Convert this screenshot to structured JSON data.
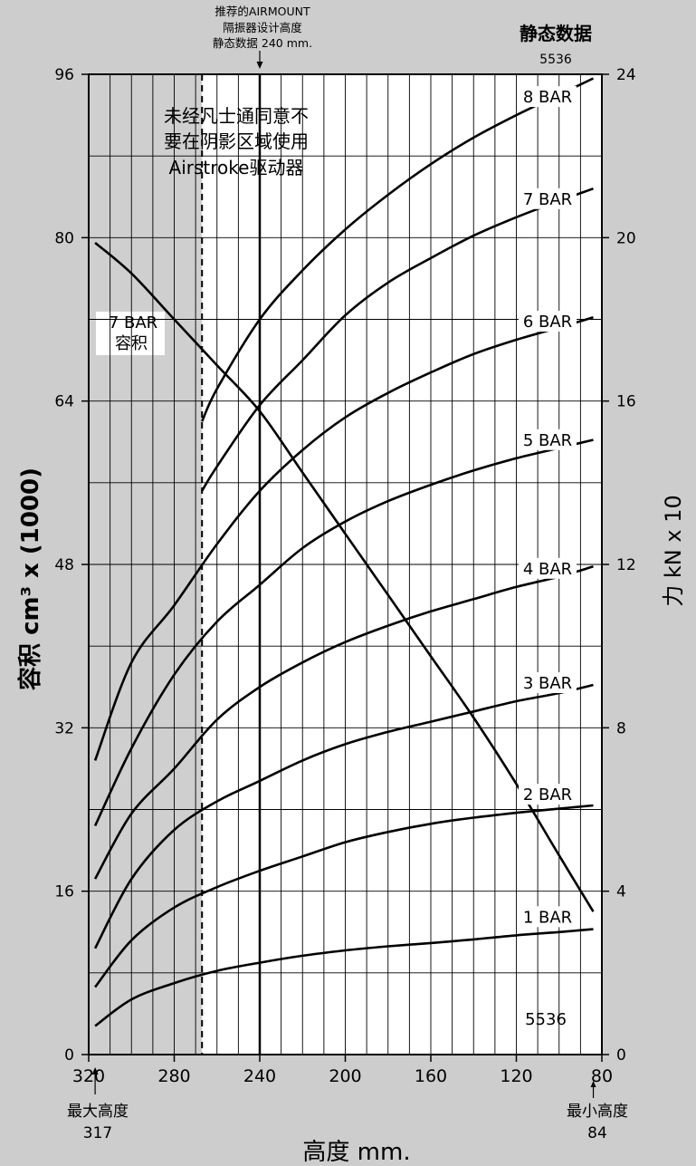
{
  "chart_data": {
    "type": "line",
    "title": "静态数据",
    "title_number": "5536",
    "part_number": "5536",
    "xlabel": "高度 mm.",
    "ylabel_left": "容积 cm³ x (1000)",
    "ylabel_right": "力 kN x 10",
    "xlim": [
      320,
      80
    ],
    "ylim_left": [
      0,
      96
    ],
    "ylim_right": [
      0,
      24
    ],
    "x_ticks": [
      "320",
      "280",
      "240",
      "200",
      "160",
      "120",
      "80"
    ],
    "x_tick_values": [
      320,
      280,
      240,
      200,
      160,
      120,
      80
    ],
    "y_left_ticks": [
      "0",
      "16",
      "32",
      "48",
      "64",
      "80",
      "96"
    ],
    "y_left_tick_values": [
      0,
      16,
      32,
      48,
      64,
      80,
      96
    ],
    "y_right_ticks": [
      "0",
      "4",
      "8",
      "12",
      "16",
      "20",
      "24"
    ],
    "y_right_tick_values": [
      0,
      4,
      8,
      12,
      16,
      20,
      24
    ],
    "grid": true,
    "recommended_height": {
      "x": 240,
      "label_lines": [
        "推荐的AIRMOUNT",
        "隔振器设计高度",
        "静态数据 240 mm."
      ]
    },
    "max_height": {
      "x": 317,
      "label": "最大高度",
      "value": "317"
    },
    "min_height": {
      "x": 84,
      "label": "最小高度",
      "value": "84"
    },
    "shaded_region": {
      "x_from": 320,
      "x_to": 267,
      "note_lines": [
        "未经凡士通同意不",
        "要在阴影区域使用",
        "Airstroke驱动器"
      ]
    },
    "volume_curve": {
      "name_lines": [
        "7 BAR",
        "容积"
      ],
      "axis": "left",
      "x": [
        317,
        300,
        280,
        260,
        240,
        220,
        200,
        180,
        160,
        140,
        120,
        100,
        84
      ],
      "y": [
        79.5,
        76.5,
        72,
        67.5,
        63,
        57,
        51,
        45,
        39,
        33,
        26.5,
        19.5,
        14
      ]
    },
    "series": [
      {
        "name": "1 BAR",
        "axis": "right",
        "x": [
          317,
          300,
          280,
          260,
          240,
          220,
          200,
          180,
          160,
          140,
          120,
          100,
          84
        ],
        "y": [
          0.7,
          1.35,
          1.75,
          2.05,
          2.25,
          2.42,
          2.55,
          2.65,
          2.73,
          2.82,
          2.92,
          3.0,
          3.07
        ]
      },
      {
        "name": "2 BAR",
        "axis": "right",
        "x": [
          317,
          300,
          280,
          260,
          240,
          220,
          200,
          180,
          160,
          140,
          120,
          100,
          84
        ],
        "y": [
          1.65,
          2.8,
          3.6,
          4.1,
          4.5,
          4.85,
          5.2,
          5.45,
          5.65,
          5.8,
          5.92,
          6.02,
          6.1
        ]
      },
      {
        "name": "3 BAR",
        "axis": "right",
        "x": [
          317,
          300,
          280,
          260,
          240,
          220,
          200,
          180,
          160,
          140,
          120,
          100,
          84
        ],
        "y": [
          2.6,
          4.3,
          5.5,
          6.2,
          6.7,
          7.2,
          7.6,
          7.9,
          8.15,
          8.4,
          8.65,
          8.85,
          9.05
        ]
      },
      {
        "name": "4 BAR",
        "axis": "right",
        "x": [
          317,
          300,
          280,
          260,
          240,
          220,
          200,
          180,
          160,
          140,
          120,
          100,
          84
        ],
        "y": [
          4.3,
          5.9,
          7.0,
          8.2,
          9.0,
          9.6,
          10.1,
          10.5,
          10.85,
          11.15,
          11.45,
          11.7,
          11.95
        ]
      },
      {
        "name": "5 BAR",
        "axis": "right",
        "x": [
          317,
          300,
          280,
          260,
          240,
          220,
          200,
          180,
          160,
          140,
          120,
          100,
          84
        ],
        "y": [
          5.6,
          7.5,
          9.3,
          10.6,
          11.5,
          12.4,
          13.05,
          13.55,
          13.95,
          14.3,
          14.6,
          14.85,
          15.05
        ]
      },
      {
        "name": "6 BAR",
        "axis": "right",
        "x": [
          317,
          300,
          280,
          260,
          240,
          220,
          200,
          180,
          160,
          140,
          120,
          100,
          84
        ],
        "y": [
          7.2,
          9.6,
          11.0,
          12.5,
          13.8,
          14.8,
          15.6,
          16.2,
          16.7,
          17.15,
          17.5,
          17.8,
          18.05
        ]
      },
      {
        "name": "7 BAR",
        "axis": "right",
        "x": [
          267,
          260,
          240,
          220,
          200,
          180,
          160,
          140,
          120,
          100,
          84
        ],
        "y": [
          13.8,
          14.4,
          15.9,
          17.0,
          18.1,
          18.9,
          19.5,
          20.05,
          20.5,
          20.9,
          21.2
        ]
      },
      {
        "name": "8 BAR",
        "axis": "right",
        "x": [
          267,
          260,
          240,
          220,
          200,
          180,
          160,
          140,
          120,
          100,
          84
        ],
        "y": [
          15.5,
          16.3,
          18.0,
          19.2,
          20.2,
          21.05,
          21.8,
          22.45,
          23.0,
          23.5,
          23.9
        ]
      }
    ]
  }
}
